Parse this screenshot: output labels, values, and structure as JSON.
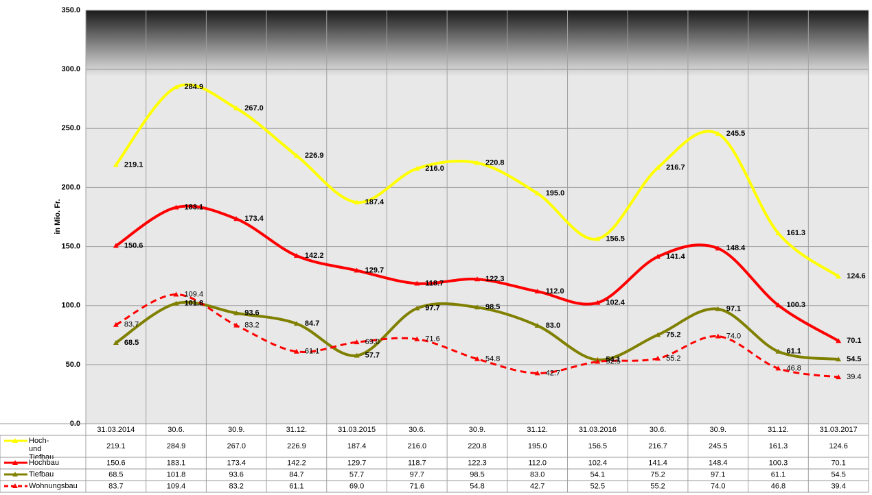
{
  "chart_data": {
    "type": "line",
    "y_label": "in Mio. Fr.",
    "categories": [
      "31.03.2014",
      "30.6.",
      "30.9.",
      "31.12.",
      "31.03.2015",
      "30.6.",
      "30.9.",
      "31.12.",
      "31.03.2016",
      "30.6.",
      "30.9.",
      "31.12.",
      "31.03.2017"
    ],
    "ylim": [
      0,
      350
    ],
    "yticks": [
      {
        "value": 0,
        "label": "0.0"
      },
      {
        "value": 50,
        "label": "50.0"
      },
      {
        "value": 100,
        "label": "100.0"
      },
      {
        "value": 150,
        "label": "150.0"
      },
      {
        "value": 200,
        "label": "200.0"
      },
      {
        "value": 250,
        "label": "250.0"
      },
      {
        "value": 300,
        "label": "300.0"
      },
      {
        "value": 350,
        "label": "350.0"
      }
    ],
    "grid": true,
    "series": [
      {
        "name": "Hoch- und Tiefbau",
        "color": "#ffff00",
        "dashed": false,
        "values": [
          219.1,
          284.9,
          267,
          226.9,
          187.4,
          216,
          220.8,
          195,
          156.5,
          216.7,
          245.5,
          161.3,
          124.6
        ],
        "value_labels": [
          "219.1",
          "284.9",
          "267.0",
          "226.9",
          "187.4",
          "216.0",
          "220.8",
          "195.0",
          "156.5",
          "216.7",
          "245.5",
          "161.3",
          "124.6"
        ]
      },
      {
        "name": "Hochbau",
        "color": "#ff0000",
        "dashed": false,
        "values": [
          150.6,
          183.1,
          173.4,
          142.2,
          129.7,
          118.7,
          122.3,
          112,
          102.4,
          141.4,
          148.4,
          100.3,
          70.1
        ],
        "value_labels": [
          "150.6",
          "183.1",
          "173.4",
          "142.2",
          "129.7",
          "118.7",
          "122.3",
          "112.0",
          "102.4",
          "141.4",
          "148.4",
          "100.3",
          "70.1"
        ]
      },
      {
        "name": "Tiefbau",
        "color": "#808000",
        "dashed": false,
        "values": [
          68.5,
          101.8,
          93.6,
          84.7,
          57.7,
          97.7,
          98.5,
          83,
          54.1,
          75.2,
          97.1,
          61.1,
          54.5
        ],
        "value_labels": [
          "68.5",
          "101.8",
          "93.6",
          "84.7",
          "57.7",
          "97.7",
          "98.5",
          "83.0",
          "54.1",
          "75.2",
          "97.1",
          "61.1",
          "54.5"
        ]
      },
      {
        "name": "Wohnungsbau",
        "color": "#ff0000",
        "dashed": true,
        "values": [
          83.7,
          109.4,
          83.2,
          61.1,
          69,
          71.6,
          54.8,
          42.7,
          52.5,
          55.2,
          74,
          46.8,
          39.4
        ],
        "value_labels": [
          "83.7",
          "109.4",
          "83.2",
          "61.1",
          "69.0",
          "71.6",
          "54.8",
          "42.7",
          "52.5",
          "55.2",
          "74.0",
          "46.8",
          "39.4"
        ]
      }
    ]
  }
}
